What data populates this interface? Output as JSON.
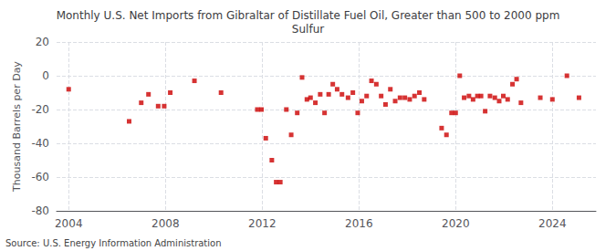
{
  "chart_data": {
    "type": "scatter",
    "title": "Monthly U.S. Net Imports from Gibraltar of Distillate Fuel Oil, Greater than 500 to 2000 ppm\nSulfur",
    "ylabel": "Thousand Barrels per Day",
    "annotations": [
      "Source: U.S. Energy Information Administration"
    ],
    "color": "#cc0000",
    "marker": "square",
    "grid": true,
    "xlim": [
      2003.5,
      2025.8
    ],
    "xticks": [
      2004,
      2008,
      2012,
      2016,
      2020,
      2024
    ],
    "ylim": [
      -80,
      20
    ],
    "yticks": [
      -80,
      -60,
      -40,
      -20,
      0,
      20
    ],
    "x": [
      2004.0,
      2006.5,
      2007.0,
      2007.3,
      2007.7,
      2007.95,
      2008.2,
      2009.2,
      2010.3,
      2011.8,
      2011.97,
      2012.15,
      2012.4,
      2012.58,
      2012.75,
      2013.0,
      2013.2,
      2013.45,
      2013.65,
      2013.85,
      2014.0,
      2014.2,
      2014.4,
      2014.58,
      2014.75,
      2014.92,
      2015.1,
      2015.3,
      2015.55,
      2015.75,
      2015.95,
      2016.12,
      2016.32,
      2016.52,
      2016.72,
      2016.92,
      2017.1,
      2017.3,
      2017.5,
      2017.7,
      2017.9,
      2018.1,
      2018.3,
      2018.5,
      2018.7,
      2019.42,
      2019.62,
      2019.83,
      2020.0,
      2020.17,
      2020.35,
      2020.55,
      2020.72,
      2020.9,
      2021.05,
      2021.22,
      2021.42,
      2021.62,
      2021.8,
      2021.97,
      2022.15,
      2022.35,
      2022.52,
      2022.7,
      2023.5,
      2024.0,
      2024.6,
      2025.1
    ],
    "values": [
      -8,
      -27,
      -16,
      -11,
      -18,
      -18,
      -10,
      -3,
      -10,
      -20,
      -20,
      -37,
      -50,
      -63,
      -63,
      -20,
      -35,
      -22,
      -1,
      -14,
      -13,
      -16,
      -11,
      -22,
      -11,
      -5,
      -8,
      -11,
      -13,
      -10,
      -22,
      -15,
      -12,
      -3,
      -5,
      -12,
      -17,
      -8,
      -15,
      -13,
      -13,
      -14,
      -12,
      -10,
      -14,
      -31,
      -35,
      -22,
      -22,
      0,
      -13,
      -12,
      -14,
      -12,
      -12,
      -21,
      -12,
      -13,
      -15,
      -12,
      -14,
      -5,
      -2,
      -16,
      -13,
      -14,
      0,
      -13
    ]
  }
}
